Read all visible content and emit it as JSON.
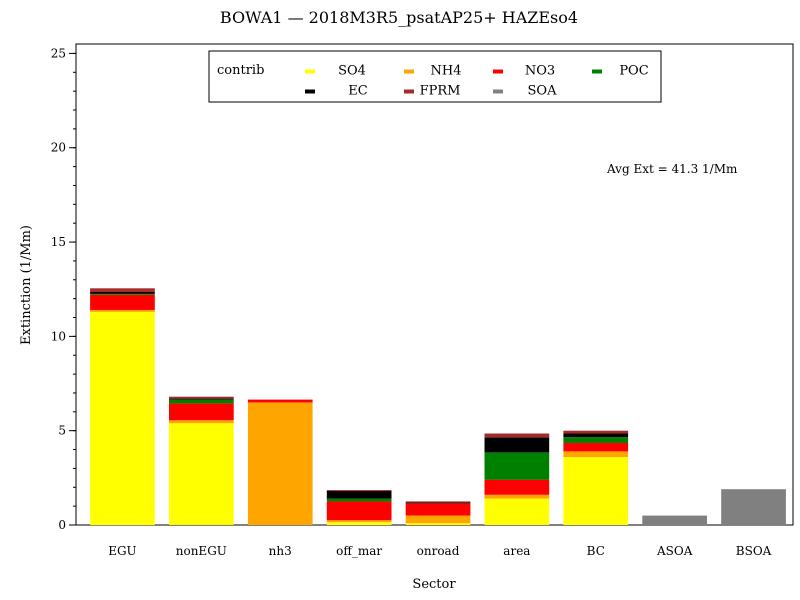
{
  "chart_data": {
    "type": "bar",
    "stacked": true,
    "title": "BOWA1 —  2018M3R5_psatAP25+ HAZEso4",
    "xlabel": "Sector",
    "ylabel": "Extinction  (1/Mm)",
    "ylim": [
      0,
      25.5
    ],
    "yticks": [
      0,
      5,
      10,
      15,
      20,
      25
    ],
    "yminor_step": 1,
    "grid": false,
    "categories": [
      "EGU",
      "nonEGU",
      "nh3",
      "off_mar",
      "onroad",
      "area",
      "BC",
      "ASOA",
      "BSOA"
    ],
    "series": [
      {
        "name": "SO4",
        "color": "#ffff00",
        "values": [
          11.3,
          5.4,
          0.0,
          0.15,
          0.1,
          1.4,
          3.6,
          0.0,
          0.0
        ]
      },
      {
        "name": "NH4",
        "color": "#ffa500",
        "values": [
          0.1,
          0.15,
          6.5,
          0.1,
          0.4,
          0.2,
          0.3,
          0.0,
          0.0
        ]
      },
      {
        "name": "NO3",
        "color": "#ff0000",
        "values": [
          0.8,
          0.9,
          0.15,
          1.0,
          0.65,
          0.8,
          0.45,
          0.0,
          0.0
        ]
      },
      {
        "name": "POC",
        "color": "#008000",
        "values": [
          0.05,
          0.2,
          0.0,
          0.15,
          0.0,
          1.45,
          0.3,
          0.0,
          0.0
        ]
      },
      {
        "name": "EC",
        "color": "#000000",
        "values": [
          0.1,
          0.05,
          0.0,
          0.4,
          0.05,
          0.8,
          0.2,
          0.0,
          0.0
        ]
      },
      {
        "name": "FPRM",
        "color": "#a52a2a",
        "values": [
          0.2,
          0.1,
          0.0,
          0.05,
          0.05,
          0.2,
          0.15,
          0.0,
          0.0
        ]
      },
      {
        "name": "SOA",
        "color": "#808080",
        "values": [
          0.0,
          0.0,
          0.0,
          0.0,
          0.0,
          0.0,
          0.0,
          0.5,
          1.9
        ]
      }
    ],
    "legend": {
      "title": "contrib",
      "placement": "top-center"
    },
    "annotation": "Avg Ext =  41.3 1/Mm"
  }
}
